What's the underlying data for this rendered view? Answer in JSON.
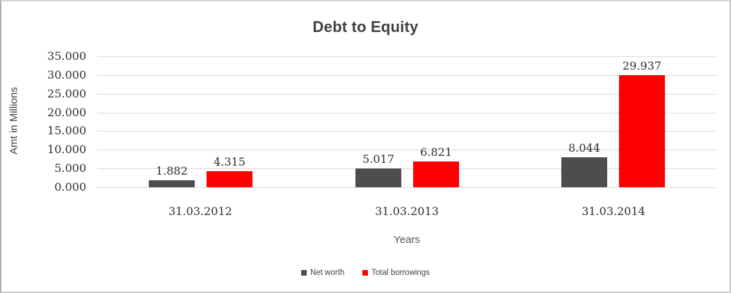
{
  "chart_data": {
    "type": "bar",
    "title": "Debt to Equity",
    "xlabel": "Years",
    "ylabel": "Amt in Millions",
    "categories": [
      "31.03.2012",
      "31.03.2013",
      "31.03.2014"
    ],
    "series": [
      {
        "name": "Net worth",
        "color": "#4d4d4d",
        "values": [
          1.882,
          5.017,
          8.044
        ],
        "labels": [
          "1.882",
          "5.017",
          "8.044"
        ]
      },
      {
        "name": "Total borrowings",
        "color": "#ff0000",
        "values": [
          4.315,
          6.821,
          29.937
        ],
        "labels": [
          "4.315",
          "6.821",
          "29.937"
        ]
      }
    ],
    "ylim": [
      0,
      35
    ],
    "ytick_step": 5,
    "ytick_labels": [
      "0.000",
      "5.000",
      "10.000",
      "15.000",
      "20.000",
      "25.000",
      "30.000",
      "35.000"
    ],
    "grid": true,
    "legend_position": "bottom"
  }
}
